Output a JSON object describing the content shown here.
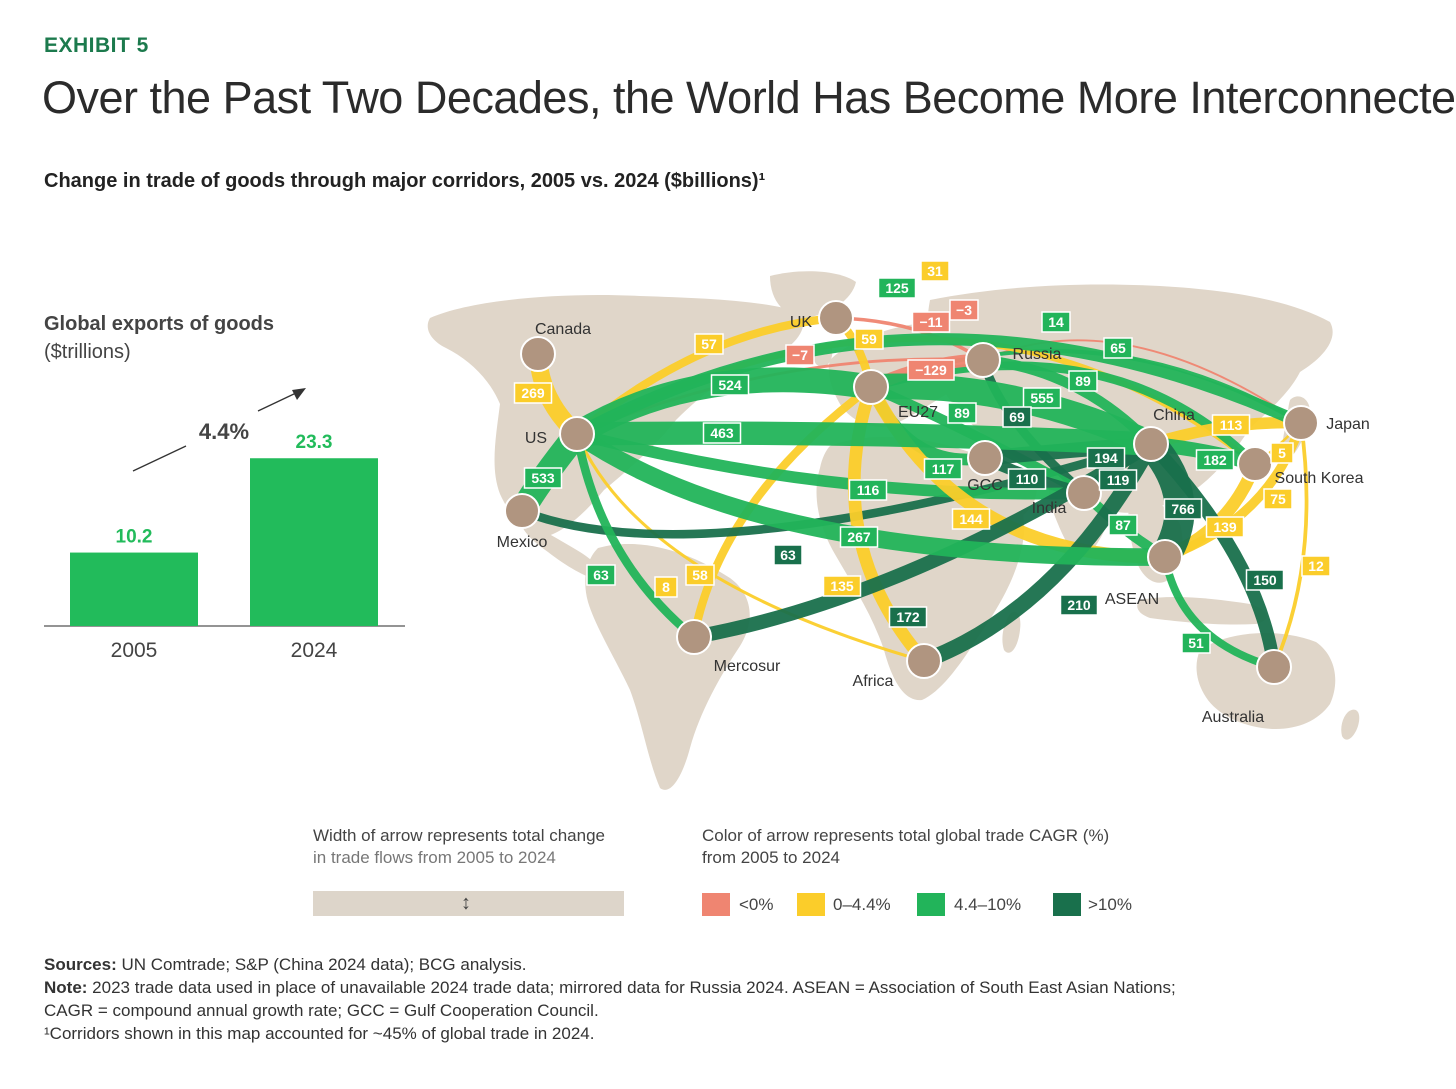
{
  "header": {
    "exhibit": "EXHIBIT 5",
    "title": "Over the Past Two Decades, the World Has Become More Interconnected",
    "subtitle": "Change in trade of goods through major corridors, 2005 vs. 2024 ($billions)¹"
  },
  "colors": {
    "negative": "#ef8571",
    "low": "#fbcd2a",
    "mid": "#22b45a",
    "high": "#19704c",
    "land": "#e0d6c9",
    "node": "#b09580",
    "bar": "#22bb5b",
    "accent_text": "#1c7a4d"
  },
  "chart_data": [
    {
      "type": "bar",
      "title_line1": "Global exports of goods",
      "title_line2": "($trillions)",
      "categories": [
        "2005",
        "2024"
      ],
      "values": [
        10.2,
        23.3
      ],
      "value_labels": [
        "10.2",
        "23.3"
      ],
      "growth_label": "4.4%",
      "ylim": [
        0,
        25
      ]
    },
    {
      "type": "flow-map",
      "nodes": [
        {
          "id": "canada",
          "label": "Canada"
        },
        {
          "id": "uk",
          "label": "UK"
        },
        {
          "id": "russia",
          "label": "Russia"
        },
        {
          "id": "eu27",
          "label": "EU27"
        },
        {
          "id": "us",
          "label": "US"
        },
        {
          "id": "china",
          "label": "China"
        },
        {
          "id": "japan",
          "label": "Japan"
        },
        {
          "id": "south_korea",
          "label": "South Korea"
        },
        {
          "id": "gcc",
          "label": "GCC"
        },
        {
          "id": "india",
          "label": "India"
        },
        {
          "id": "mexico",
          "label": "Mexico"
        },
        {
          "id": "asean",
          "label": "ASEAN"
        },
        {
          "id": "mercosur",
          "label": "Mercosur"
        },
        {
          "id": "africa",
          "label": "Africa"
        },
        {
          "id": "australia",
          "label": "Australia"
        }
      ],
      "flows": [
        {
          "from": "us",
          "to": "china",
          "value": 463,
          "label": "463",
          "category": "mid"
        },
        {
          "from": "us",
          "to": "eu27",
          "value": 524,
          "label": "524",
          "category": "mid"
        },
        {
          "from": "eu27",
          "to": "china",
          "value": 555,
          "label": "555",
          "category": "mid"
        },
        {
          "from": "us",
          "to": "asean",
          "value": 267,
          "label": "267",
          "category": "mid"
        },
        {
          "from": "us",
          "to": "india",
          "value": 116,
          "label": "116",
          "category": "mid"
        },
        {
          "from": "us",
          "to": "mexico",
          "value": 533,
          "label": "533",
          "category": "mid"
        },
        {
          "from": "us",
          "to": "canada",
          "value": 269,
          "label": "269",
          "category": "low"
        },
        {
          "from": "us",
          "to": "japan",
          "value": 125,
          "label": "125",
          "category": "mid"
        },
        {
          "from": "us",
          "to": "south_korea",
          "value": 31,
          "label": "31",
          "category": "low"
        },
        {
          "from": "us",
          "to": "uk",
          "value": 57,
          "label": "57",
          "category": "low"
        },
        {
          "from": "eu27",
          "to": "uk",
          "value": 59,
          "label": "59",
          "category": "low"
        },
        {
          "from": "us",
          "to": "russia",
          "value": -7,
          "label": "−7",
          "category": "negative"
        },
        {
          "from": "eu27",
          "to": "russia",
          "value": -129,
          "label": "−129",
          "category": "negative"
        },
        {
          "from": "uk",
          "to": "russia",
          "value": -11,
          "label": "−11",
          "category": "negative"
        },
        {
          "from": "russia",
          "to": "japan",
          "value": -3,
          "label": "−3",
          "category": "negative"
        },
        {
          "from": "eu27",
          "to": "japan",
          "value": 14,
          "label": "14",
          "category": "mid"
        },
        {
          "from": "eu27",
          "to": "south_korea",
          "value": 65,
          "label": "65",
          "category": "mid"
        },
        {
          "from": "russia",
          "to": "china",
          "value": 89,
          "label": "89",
          "category": "mid"
        },
        {
          "from": "russia",
          "to": "india",
          "value": 69,
          "label": "69",
          "category": "high"
        },
        {
          "from": "eu27",
          "to": "india",
          "value": 89,
          "label": "89",
          "category": "mid"
        },
        {
          "from": "eu27",
          "to": "gcc",
          "value": 117,
          "label": "117",
          "category": "mid"
        },
        {
          "from": "gcc",
          "to": "china",
          "value": 194,
          "label": "194",
          "category": "high"
        },
        {
          "from": "gcc",
          "to": "india",
          "value": 110,
          "label": "110",
          "category": "high"
        },
        {
          "from": "india",
          "to": "china",
          "value": 119,
          "label": "119",
          "category": "high"
        },
        {
          "from": "eu27",
          "to": "asean",
          "value": 144,
          "label": "144",
          "category": "low"
        },
        {
          "from": "china",
          "to": "japan",
          "value": 113,
          "label": "113",
          "category": "low"
        },
        {
          "from": "china",
          "to": "south_korea",
          "value": 182,
          "label": "182",
          "category": "mid"
        },
        {
          "from": "japan",
          "to": "south_korea",
          "value": 5,
          "label": "5",
          "category": "low"
        },
        {
          "from": "japan",
          "to": "asean",
          "value": 75,
          "label": "75",
          "category": "low"
        },
        {
          "from": "south_korea",
          "to": "asean",
          "value": 139,
          "label": "139",
          "category": "low"
        },
        {
          "from": "china",
          "to": "asean",
          "value": 766,
          "label": "766",
          "category": "high"
        },
        {
          "from": "india",
          "to": "asean",
          "value": 87,
          "label": "87",
          "category": "mid"
        },
        {
          "from": "china",
          "to": "australia",
          "value": 150,
          "label": "150",
          "category": "high"
        },
        {
          "from": "japan",
          "to": "australia",
          "value": 12,
          "label": "12",
          "category": "low"
        },
        {
          "from": "asean",
          "to": "australia",
          "value": 51,
          "label": "51",
          "category": "mid"
        },
        {
          "from": "china",
          "to": "africa",
          "value": 210,
          "label": "210",
          "category": "high"
        },
        {
          "from": "china",
          "to": "mercosur",
          "value": 172,
          "label": "172",
          "category": "high"
        },
        {
          "from": "mexico",
          "to": "china",
          "value": 63,
          "label": "63",
          "category": "high"
        },
        {
          "from": "us",
          "to": "mercosur",
          "value": 63,
          "label": "63",
          "category": "mid"
        },
        {
          "from": "eu27",
          "to": "mercosur",
          "value": 58,
          "label": "58",
          "category": "low"
        },
        {
          "from": "us",
          "to": "africa",
          "value": 8,
          "label": "8",
          "category": "low"
        },
        {
          "from": "eu27",
          "to": "africa",
          "value": 135,
          "label": "135",
          "category": "low"
        }
      ]
    }
  ],
  "legend": {
    "width_line1": "Width of arrow represents total change",
    "width_line2": "in trade flows from 2005 to 2024",
    "width_icon": "double-arrow-vertical-icon",
    "color_line1": "Color of arrow represents total global trade CAGR (%)",
    "color_line2": "from 2005 to 2024",
    "items": [
      {
        "category": "negative",
        "label": "<0%"
      },
      {
        "category": "low",
        "label": "0–4.4%"
      },
      {
        "category": "mid",
        "label": "4.4–10%"
      },
      {
        "category": "high",
        "label": ">10%"
      }
    ]
  },
  "footer": {
    "sources_label": "Sources:",
    "sources_text": " UN Comtrade; S&P (China 2024 data); BCG analysis.",
    "note_label": "Note:",
    "note_text": " 2023 trade data used in place of unavailable 2024 trade data; mirrored data for Russia 2024. ASEAN = Association of South East Asian Nations;",
    "note_text_2": "CAGR = compound annual growth rate; GCC = Gulf Cooperation Council.",
    "footnote": "¹Corridors shown in this map accounted for ~45% of global trade in 2024."
  }
}
